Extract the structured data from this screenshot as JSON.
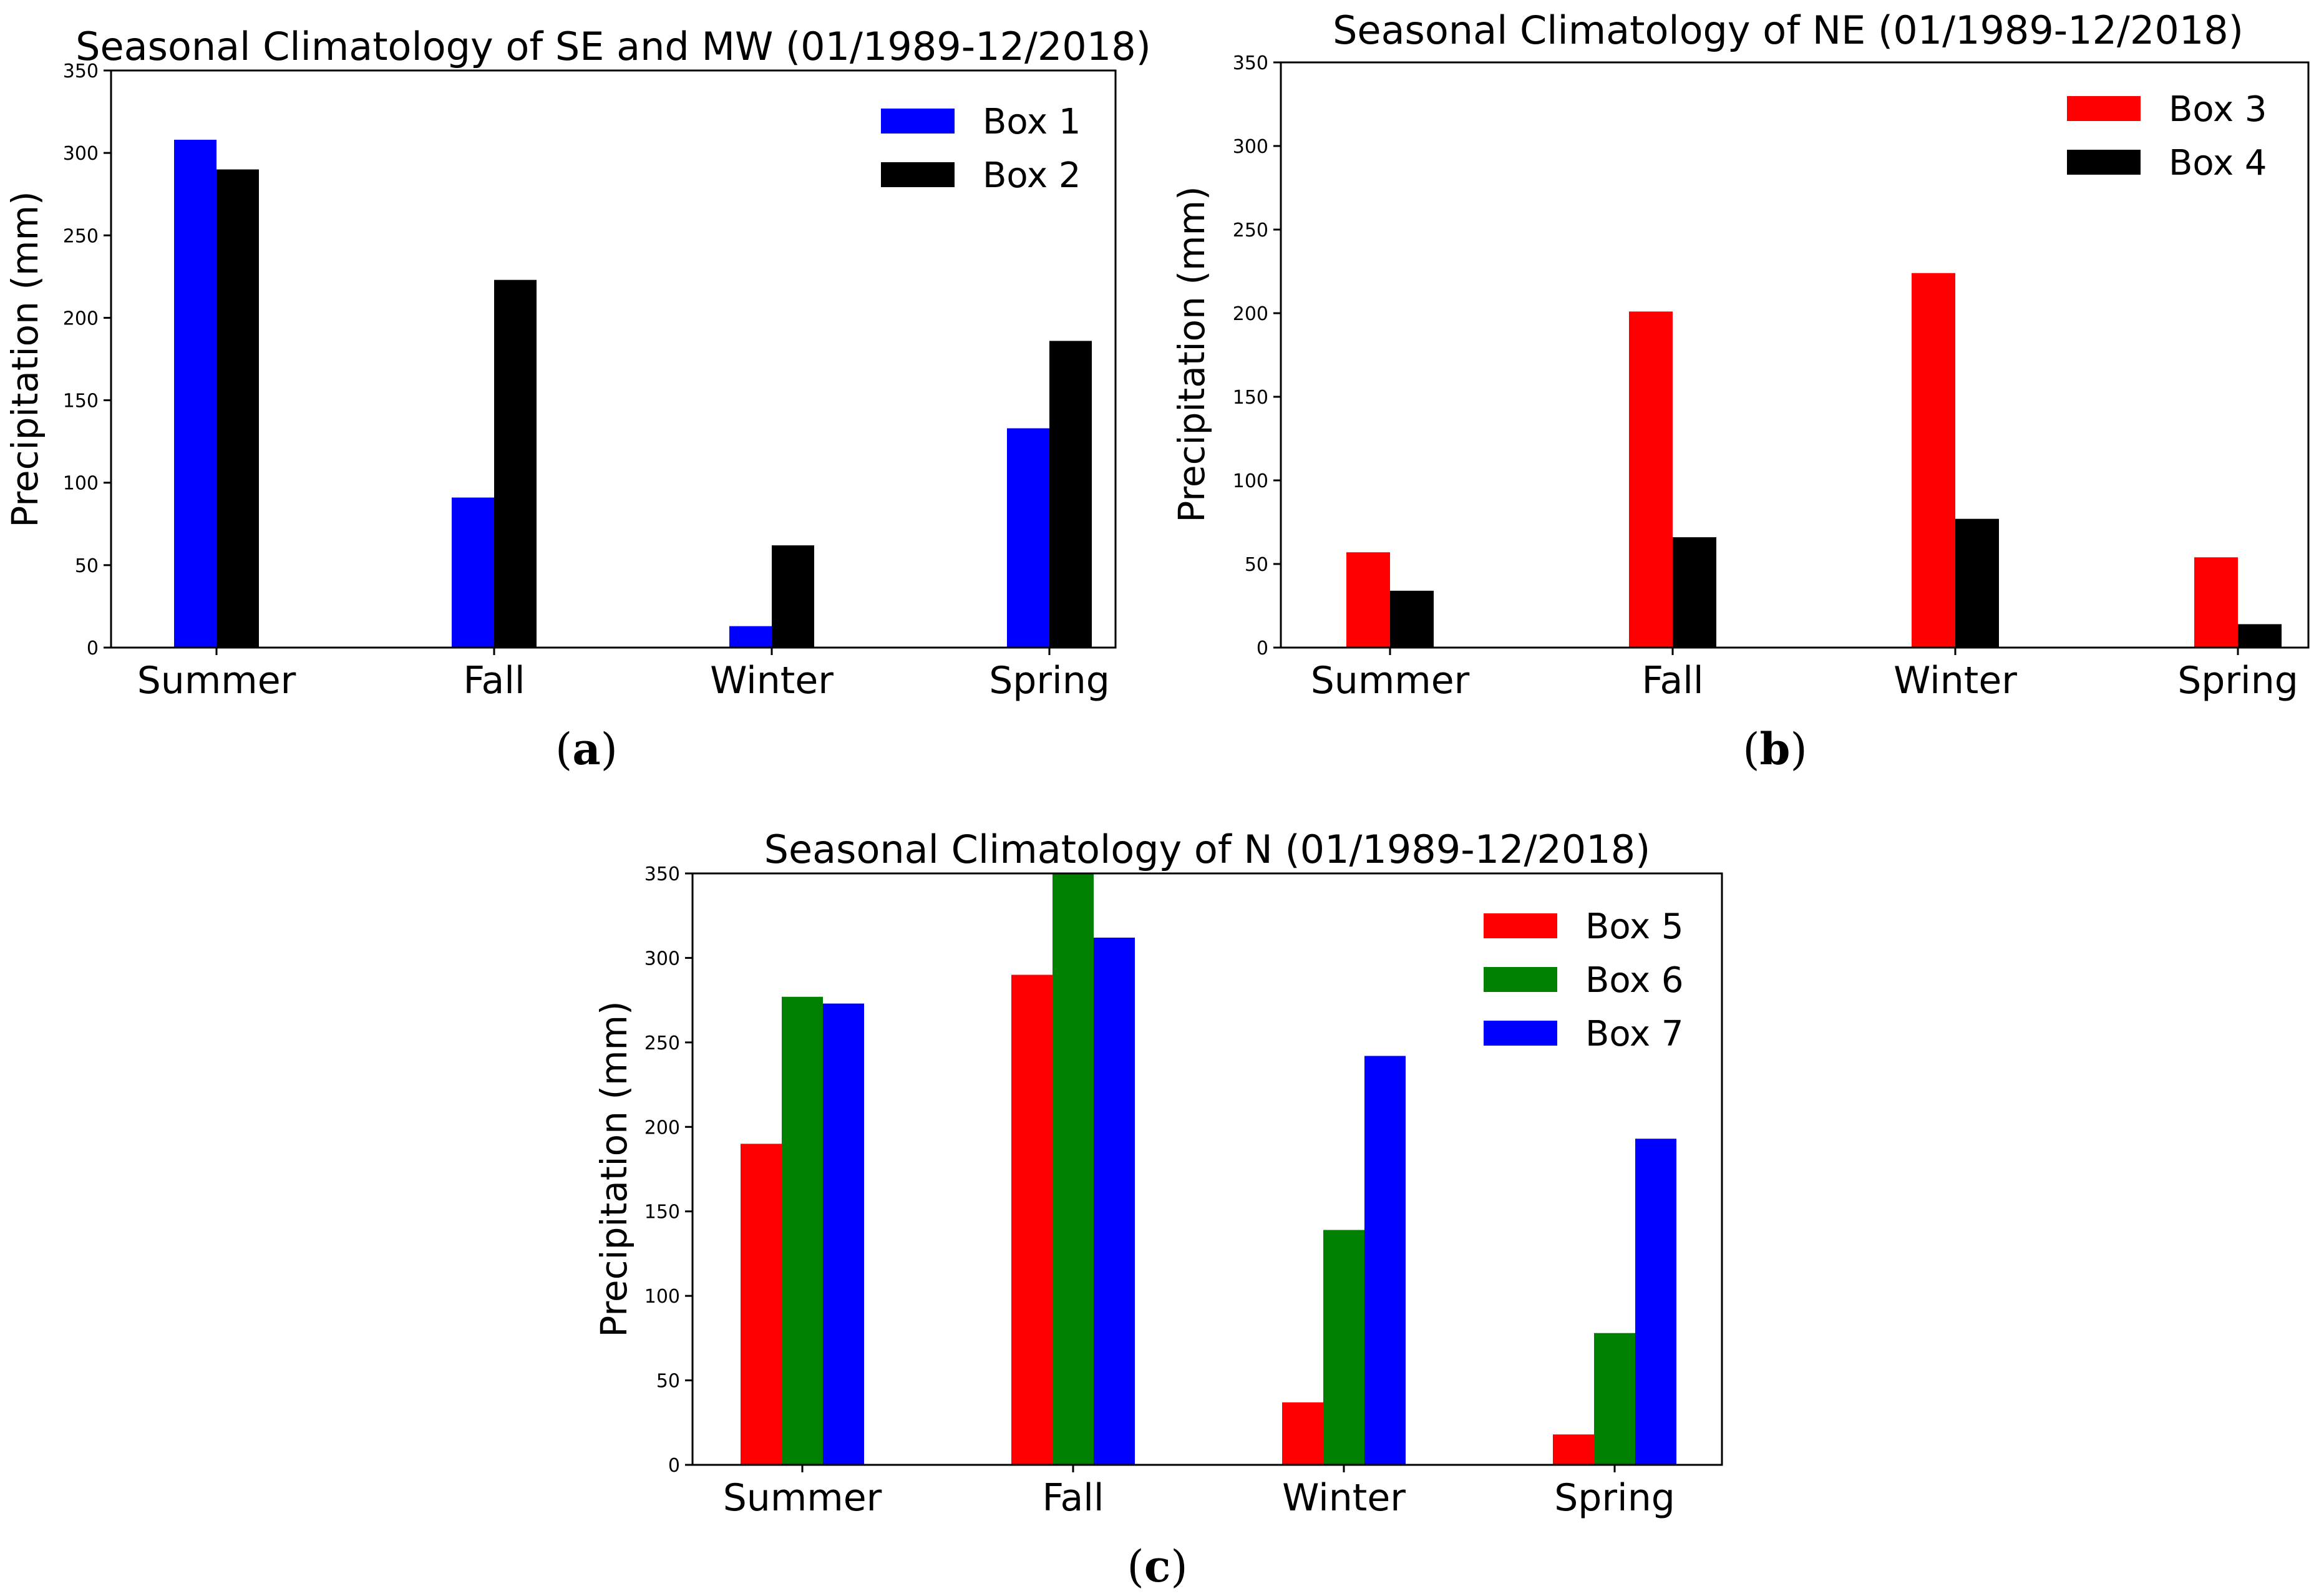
{
  "chart_data": [
    {
      "type": "bar",
      "title": "Seasonal Climatology of SE and MW (01/1989-12/2018)",
      "ylabel": "Precipitation (mm)",
      "xlabel": "",
      "ylim": [
        0,
        350
      ],
      "yticks": [
        0,
        50,
        100,
        150,
        200,
        250,
        300,
        350
      ],
      "categories": [
        "Summer",
        "Fall",
        "Winter",
        "Spring"
      ],
      "series": [
        {
          "name": "Box 1",
          "color": "#0000ff",
          "values": [
            308,
            91,
            13,
            133
          ]
        },
        {
          "name": "Box 2",
          "color": "#000000",
          "values": [
            290,
            223,
            62,
            186
          ]
        }
      ],
      "legend": "top-right",
      "caption_letter": "a"
    },
    {
      "type": "bar",
      "title": "Seasonal Climatology of NE (01/1989-12/2018)",
      "ylabel": "Precipitation (mm)",
      "xlabel": "",
      "ylim": [
        0,
        350
      ],
      "yticks": [
        0,
        50,
        100,
        150,
        200,
        250,
        300,
        350
      ],
      "categories": [
        "Summer",
        "Fall",
        "Winter",
        "Spring"
      ],
      "series": [
        {
          "name": "Box 3",
          "color": "#ff0000",
          "values": [
            57,
            201,
            224,
            54
          ]
        },
        {
          "name": "Box 4",
          "color": "#000000",
          "values": [
            34,
            66,
            77,
            14
          ]
        }
      ],
      "legend": "top-right",
      "caption_letter": "b"
    },
    {
      "type": "bar",
      "title": "Seasonal Climatology of N (01/1989-12/2018)",
      "ylabel": "Precipitation (mm)",
      "xlabel": "",
      "ylim": [
        0,
        350
      ],
      "yticks": [
        0,
        50,
        100,
        150,
        200,
        250,
        300,
        350
      ],
      "categories": [
        "Summer",
        "Fall",
        "Winter",
        "Spring"
      ],
      "series": [
        {
          "name": "Box 5",
          "color": "#ff0000",
          "values": [
            190,
            290,
            37,
            18
          ]
        },
        {
          "name": "Box 6",
          "color": "#008000",
          "values": [
            277,
            358,
            139,
            78
          ]
        },
        {
          "name": "Box 7",
          "color": "#0000ff",
          "values": [
            273,
            312,
            242,
            193
          ]
        }
      ],
      "legend": "top-right",
      "caption_letter": "c"
    }
  ]
}
